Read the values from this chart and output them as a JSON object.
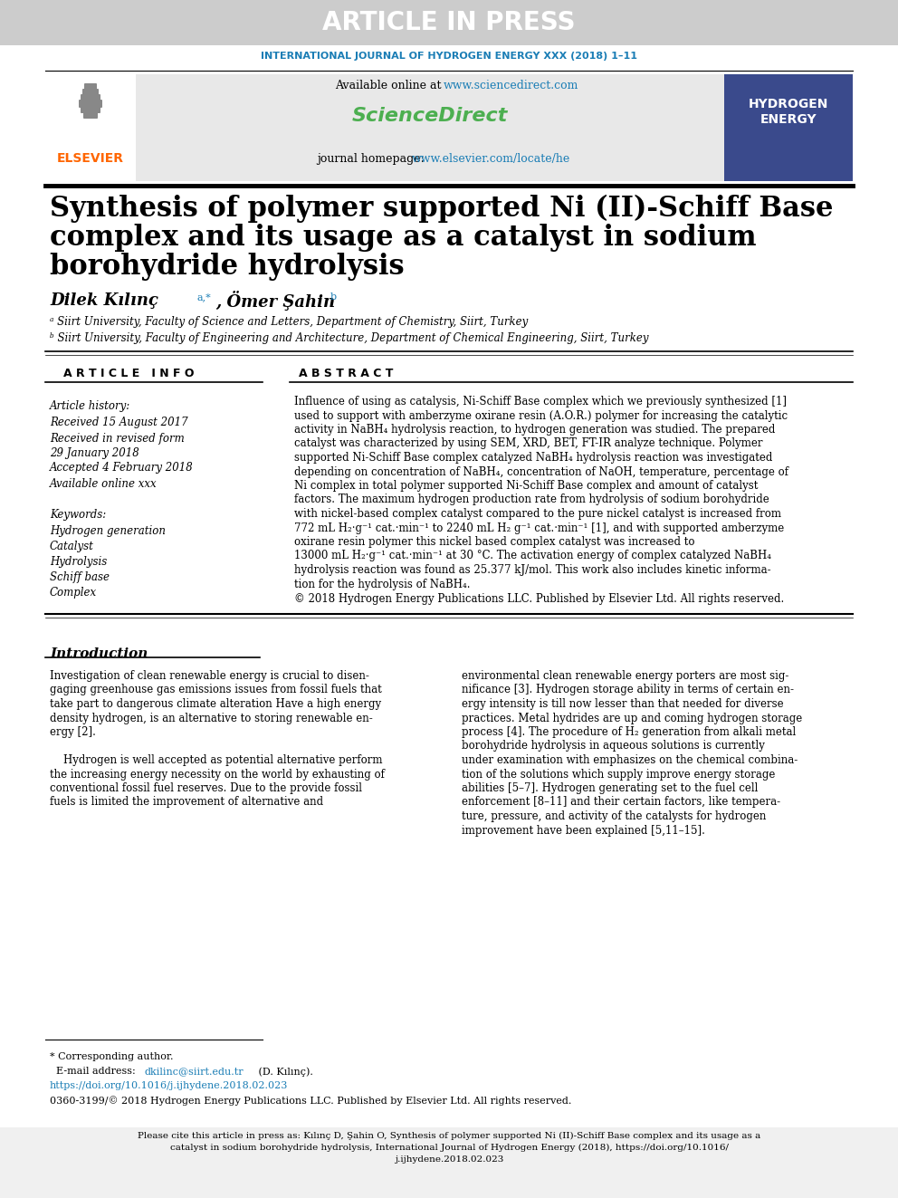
{
  "article_in_press_text": "ARTICLE IN PRESS",
  "article_in_press_bg": "#cccccc",
  "journal_name": "INTERNATIONAL JOURNAL OF HYDROGEN ENERGY XXX (2018) 1–11",
  "journal_name_color": "#1a7db5",
  "available_online_url_color": "#1a7db5",
  "sciencedirect_text": "ScienceDirect",
  "sciencedirect_color": "#4caf50",
  "journal_homepage_url_color": "#1a7db5",
  "elsevier_color": "#ff6600",
  "header_bg": "#e8e8e8",
  "title_line1": "Synthesis of polymer supported Ni (II)-Schiff Base",
  "title_line2": "complex and its usage as a catalyst in sodium",
  "title_line3": "borohydride hydrolysis",
  "affil_a": "ᵃ Siirt University, Faculty of Science and Letters, Department of Chemistry, Siirt, Turkey",
  "affil_b": "ᵇ Siirt University, Faculty of Engineering and Architecture, Department of Chemical Engineering, Siirt, Turkey",
  "article_info_label": "A R T I C L E   I N F O",
  "abstract_label": "A B S T R A C T",
  "article_history_label": "Article history:",
  "received1": "Received 15 August 2017",
  "received_revised": "Received in revised form",
  "received_revised2": "29 January 2018",
  "accepted": "Accepted 4 February 2018",
  "available": "Available online xxx",
  "keywords_label": "Keywords:",
  "keyword1": "Hydrogen generation",
  "keyword2": "Catalyst",
  "keyword3": "Hydrolysis",
  "keyword4": "Schiff base",
  "keyword5": "Complex",
  "copyright_text": "© 2018 Hydrogen Energy Publications LLC. Published by Elsevier Ltd. All rights reserved.",
  "intro_title": "Introduction",
  "footnote_corresponding": "* Corresponding author.",
  "footnote_doi": "https://doi.org/10.1016/j.ijhydene.2018.02.023",
  "footnote_issn": "0360-3199/© 2018 Hydrogen Energy Publications LLC. Published by Elsevier Ltd. All rights reserved.",
  "bottom_bg": "#f0f0f0",
  "page_bg": "#ffffff"
}
